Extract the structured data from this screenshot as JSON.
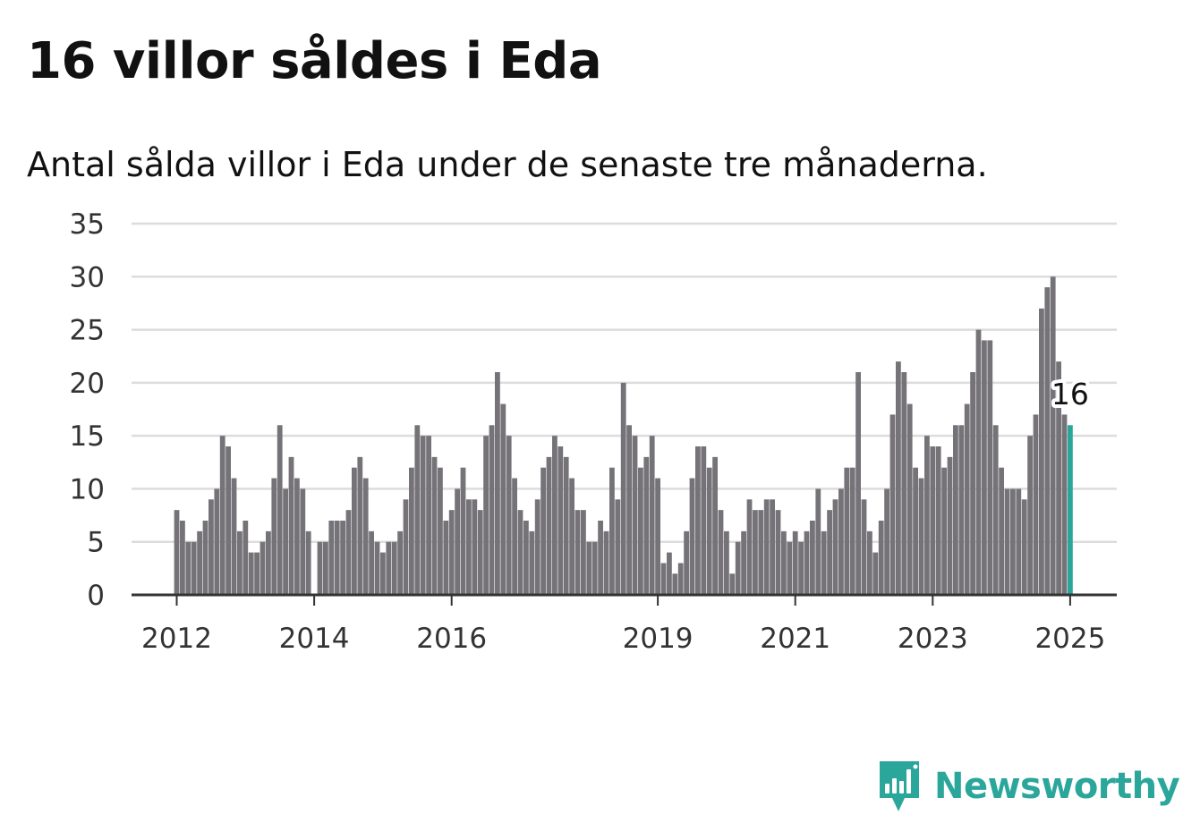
{
  "title": "16 villor såldes i Eda",
  "subtitle": "Antal sålda villor i Eda under de senaste tre månaderna.",
  "brand": {
    "name": "Newsworthy",
    "color": "#2aa69b",
    "icon": "newsworthy-logo-icon"
  },
  "colors": {
    "bar": "#757378",
    "highlight": "#2aa69b",
    "grid": "#dcdcdc",
    "axis": "#333333"
  },
  "chart_data": {
    "type": "bar",
    "start": "2012-01",
    "ylim": [
      0,
      35
    ],
    "yticks": [
      0,
      5,
      10,
      15,
      20,
      25,
      30,
      35
    ],
    "xticks": [
      "2012",
      "2014",
      "2016",
      "2019",
      "2021",
      "2023",
      "2025"
    ],
    "highlight_label": "16",
    "grid": true,
    "values": [
      8,
      7,
      5,
      5,
      6,
      7,
      9,
      10,
      15,
      14,
      11,
      6,
      7,
      4,
      4,
      5,
      6,
      11,
      16,
      10,
      13,
      11,
      10,
      6,
      0,
      5,
      5,
      7,
      7,
      7,
      8,
      12,
      13,
      11,
      6,
      5,
      4,
      5,
      5,
      6,
      9,
      12,
      16,
      15,
      15,
      13,
      12,
      7,
      8,
      10,
      12,
      9,
      9,
      8,
      15,
      16,
      21,
      18,
      15,
      11,
      8,
      7,
      6,
      9,
      12,
      13,
      15,
      14,
      13,
      11,
      8,
      8,
      5,
      5,
      7,
      6,
      12,
      9,
      20,
      16,
      15,
      12,
      13,
      15,
      11,
      3,
      4,
      2,
      3,
      6,
      11,
      14,
      14,
      12,
      13,
      8,
      6,
      2,
      5,
      6,
      9,
      8,
      8,
      9,
      9,
      8,
      6,
      5,
      6,
      5,
      6,
      7,
      10,
      6,
      8,
      9,
      10,
      12,
      12,
      21,
      9,
      6,
      4,
      7,
      10,
      17,
      22,
      21,
      18,
      12,
      11,
      15,
      14,
      14,
      12,
      13,
      16,
      16,
      18,
      21,
      25,
      24,
      24,
      16,
      12,
      10,
      10,
      10,
      9,
      15,
      17,
      27,
      29,
      30,
      22,
      17,
      16
    ]
  }
}
